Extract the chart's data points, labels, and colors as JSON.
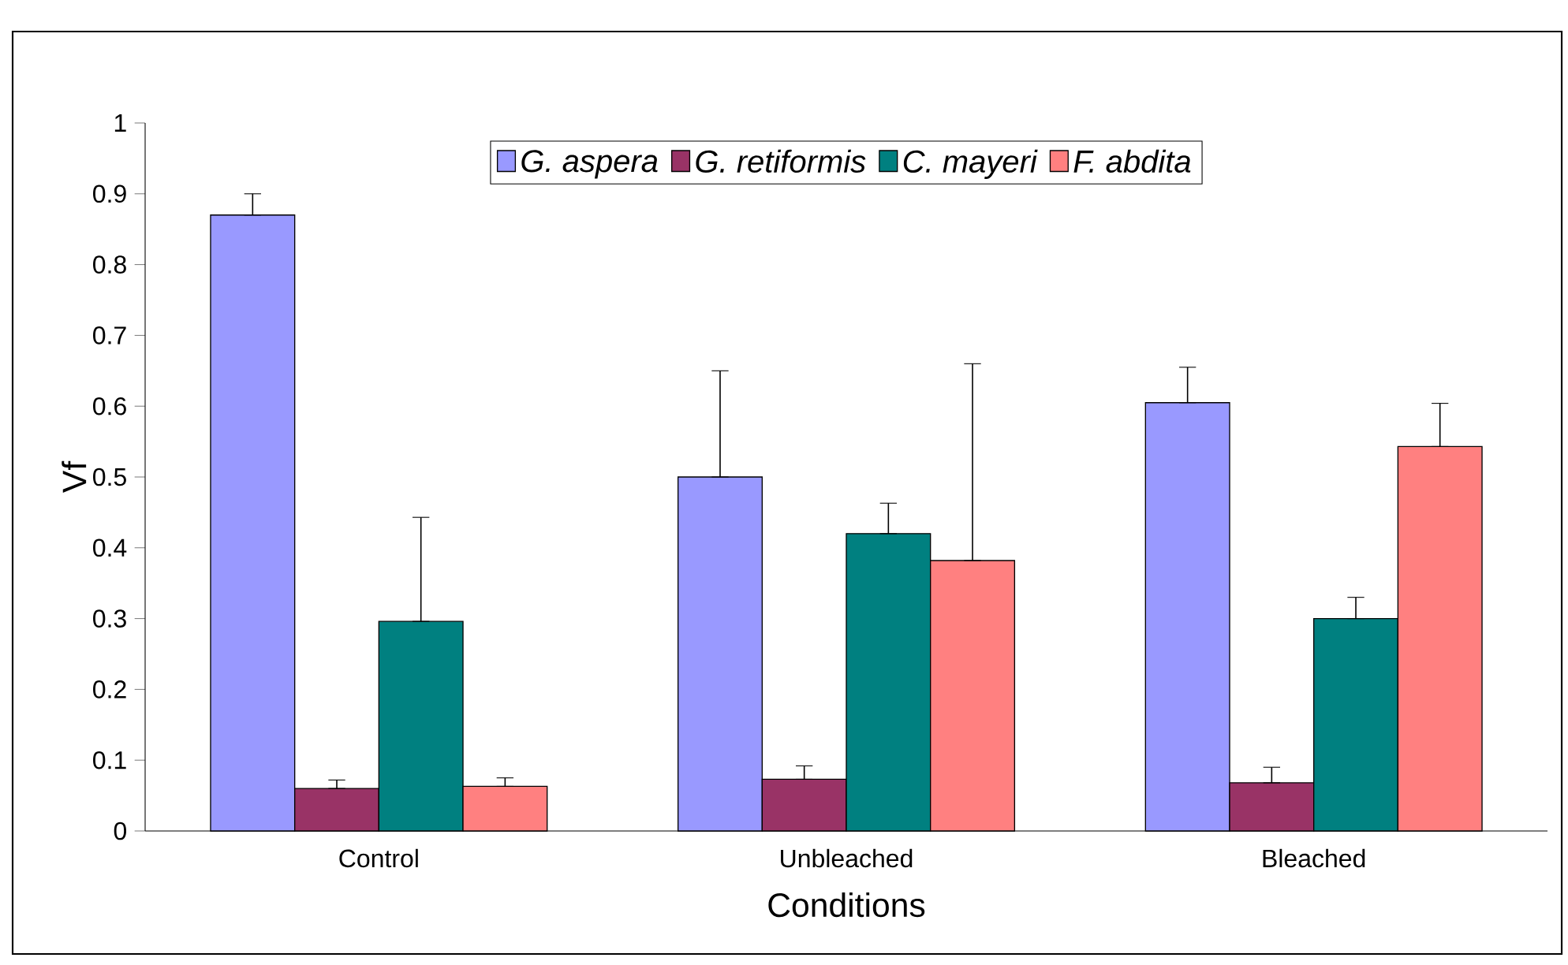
{
  "chart_data": {
    "type": "bar",
    "xlabel": "Conditions",
    "ylabel": "Vf",
    "categories": [
      "Control",
      "Unbleached",
      "Bleached"
    ],
    "series": [
      {
        "name": "G. aspera",
        "color": "#9999ff",
        "values": [
          0.87,
          0.5,
          0.605
        ],
        "errors": [
          [
            0.87,
            0.9
          ],
          [
            0.5,
            0.65
          ],
          [
            0.605,
            0.655
          ]
        ]
      },
      {
        "name": "G. retiformis",
        "color": "#993366",
        "values": [
          0.06,
          0.073,
          0.068
        ],
        "errors": [
          [
            0.06,
            0.072
          ],
          [
            0.073,
            0.092
          ],
          [
            0.068,
            0.09
          ]
        ]
      },
      {
        "name": "C. mayeri",
        "color": "#008080",
        "values": [
          0.296,
          0.42,
          0.3
        ],
        "errors": [
          [
            0.296,
            0.443
          ],
          [
            0.42,
            0.463
          ],
          [
            0.3,
            0.33
          ]
        ]
      },
      {
        "name": "F. abdita",
        "color": "#ff8080",
        "values": [
          0.063,
          0.382,
          0.543
        ],
        "errors": [
          [
            0.063,
            0.075
          ],
          [
            0.382,
            0.66
          ],
          [
            0.543,
            0.604
          ]
        ]
      }
    ],
    "ylim": [
      0,
      1
    ],
    "yticks": [
      0,
      0.1,
      0.2,
      0.3,
      0.4,
      0.5,
      0.6,
      0.7,
      0.8,
      0.9,
      1
    ],
    "legend": "top",
    "grid": false
  }
}
